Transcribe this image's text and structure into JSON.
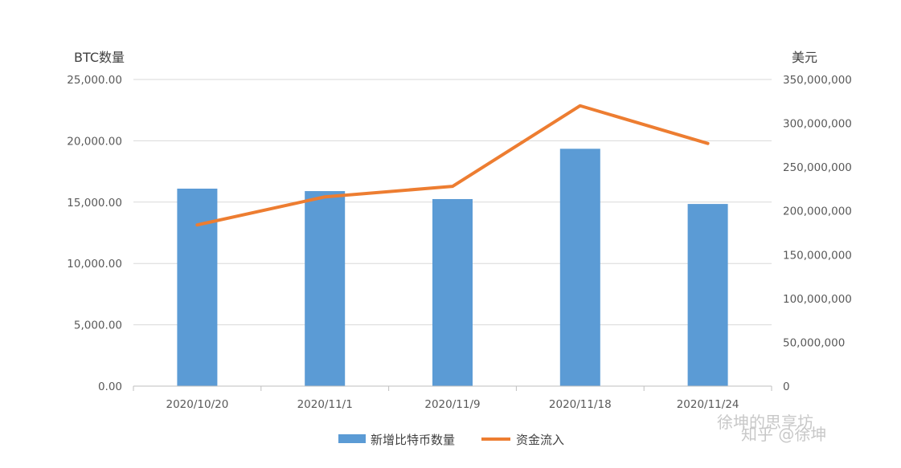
{
  "chart_data": {
    "type": "bar",
    "categories": [
      "2020/10/20",
      "2020/11/1",
      "2020/11/9",
      "2020/11/18",
      "2020/11/24"
    ],
    "series": [
      {
        "name": "新增比特币数量",
        "type": "bar",
        "axis": "left",
        "color": "#5b9bd5",
        "values": [
          16100,
          15900,
          15250,
          19350,
          14850
        ]
      },
      {
        "name": "资金流入",
        "type": "line",
        "axis": "right",
        "color": "#ed7d31",
        "values": [
          184000000,
          216000000,
          228000000,
          320000000,
          277000000
        ]
      }
    ],
    "ylabel_left": "BTC数量",
    "ylabel_right": "美元",
    "ylim_left": [
      0,
      25000
    ],
    "ylim_right": [
      0,
      350000000
    ],
    "yticks_left": [
      "0.00",
      "5,000.00",
      "10,000.00",
      "15,000.00",
      "20,000.00",
      "25,000.00"
    ],
    "yticks_right": [
      "0",
      "50,000,000",
      "100,000,000",
      "150,000,000",
      "200,000,000",
      "250,000,000",
      "300,000,000",
      "350,000,000"
    ],
    "grid": true,
    "legend_position": "bottom"
  },
  "watermark": {
    "line1": "徐坤的思享坊",
    "line2": "知乎 @徐坤"
  }
}
